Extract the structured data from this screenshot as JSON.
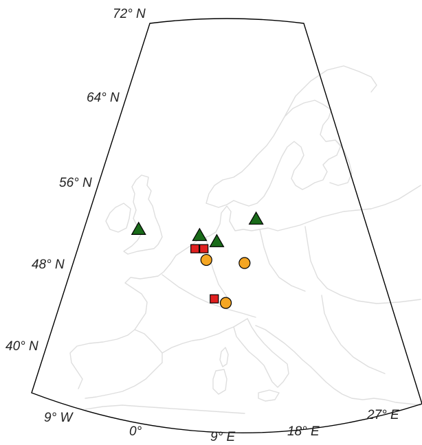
{
  "map": {
    "latitude_labels": [
      {
        "id": "72n",
        "text": "72° N"
      },
      {
        "id": "64n",
        "text": "64° N"
      },
      {
        "id": "56n",
        "text": "56° N"
      },
      {
        "id": "48n",
        "text": "48° N"
      },
      {
        "id": "40n",
        "text": "40° N"
      }
    ],
    "longitude_labels": [
      {
        "id": "9w",
        "text": "9° W"
      },
      {
        "id": "0",
        "text": "0°"
      },
      {
        "id": "9e",
        "text": "9° E"
      },
      {
        "id": "18e",
        "text": "18° E"
      },
      {
        "id": "27e",
        "text": "27° E"
      }
    ],
    "colors": {
      "triangle": "#1a6b1a",
      "square": "#e02020",
      "circle": "#f5a623",
      "outline": "#000000",
      "coastline": "#dedede"
    },
    "markers": [
      {
        "type": "triangle",
        "lon": -0.1,
        "lat": 51.5
      },
      {
        "type": "triangle",
        "lon": 6.8,
        "lat": 50.9
      },
      {
        "type": "triangle",
        "lon": 8.7,
        "lat": 50.3
      },
      {
        "type": "triangle",
        "lon": 13.4,
        "lat": 52.5
      },
      {
        "type": "square",
        "lon": 6.2,
        "lat": 49.6
      },
      {
        "type": "square",
        "lon": 7.2,
        "lat": 49.6
      },
      {
        "type": "square",
        "lon": 8.0,
        "lat": 44.7
      },
      {
        "type": "circle",
        "lon": 7.4,
        "lat": 48.5
      },
      {
        "type": "circle",
        "lon": 11.6,
        "lat": 48.2
      },
      {
        "type": "circle",
        "lon": 9.2,
        "lat": 44.3
      }
    ]
  }
}
